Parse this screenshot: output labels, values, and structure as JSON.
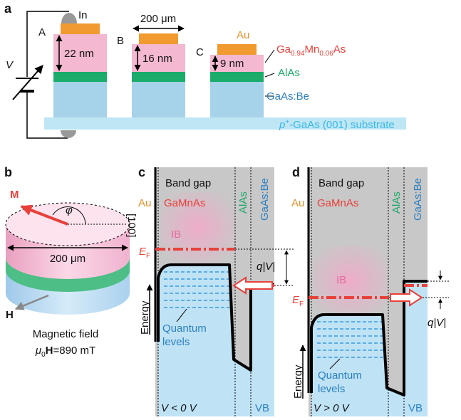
{
  "panel_a": {
    "label": "a",
    "contact": "In",
    "mesa_labels": [
      "A",
      "B",
      "C"
    ],
    "voltage": "V",
    "thicknesses": [
      "22 nm",
      "16 nm",
      "9 nm"
    ],
    "width": "200 μm",
    "layers": {
      "au": "Au",
      "gamnas": {
        "ga": "Ga",
        "x1": "0.94",
        "mn": "Mn",
        "x2": "0.06",
        "as": "As"
      },
      "alas": "AlAs",
      "gaasbe": "GaAs:Be",
      "substrate": {
        "p": "p",
        "sup": "+",
        "rest": "-GaAs (001) substrate"
      }
    }
  },
  "panel_b": {
    "label": "b",
    "magnetization": "M",
    "angle": "φ",
    "direction": "[100]",
    "diameter": "200 μm",
    "field": "H",
    "field_caption": "Magnetic field",
    "field_value": {
      "mu": "μ",
      "sub": "0",
      "h": "H",
      "rest": "=890 mT"
    }
  },
  "panel_c": {
    "label": "c",
    "band_gap": "Band gap",
    "au": "Au",
    "gamnas": "GaMnAs",
    "alas": "AlAs",
    "gaasbe": "GaAs:Be",
    "ib": "IB",
    "ef": {
      "e": "E",
      "sub": "F"
    },
    "bias": "q|V|",
    "energy": "Energy",
    "quantum": [
      "Quantum",
      "levels"
    ],
    "voltage": "V < 0 V",
    "vb": "VB"
  },
  "panel_d": {
    "label": "d",
    "band_gap": "Band gap",
    "au": "Au",
    "gamnas": "GaMnAs",
    "alas": "AlAs",
    "gaasbe": "GaAs:Be",
    "ib": "IB",
    "ef": {
      "e": "E",
      "sub": "F"
    },
    "bias": "q|V|",
    "energy": "Energy",
    "quantum": [
      "Quantum",
      "levels"
    ],
    "voltage": "V > 0 V",
    "vb": "VB"
  }
}
